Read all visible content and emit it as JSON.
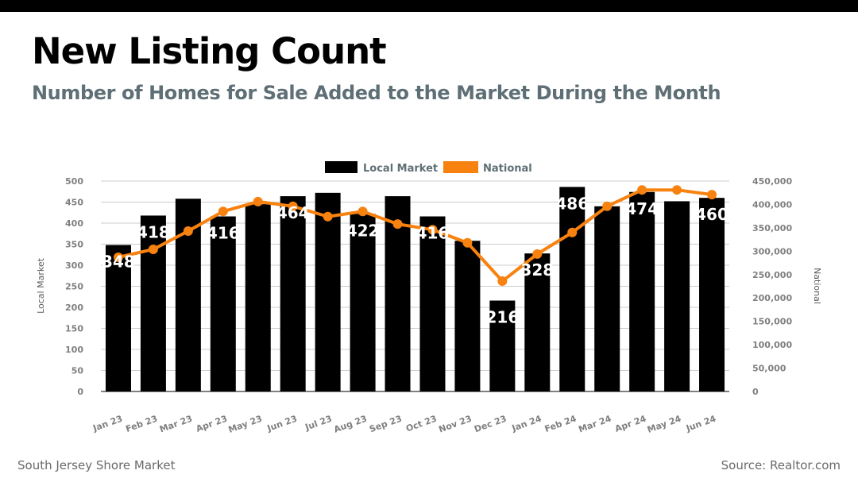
{
  "header": {
    "title": "New Listing Count",
    "subtitle": "Number of Homes for Sale Added to the Market During the Month"
  },
  "footer": {
    "left": "South Jersey Shore Market",
    "right": "Source: Realtor.com"
  },
  "colors": {
    "local": "#000000",
    "national": "#f7820f",
    "grid": "#cccccc",
    "tick": "#7f7f7f",
    "subtitle": "#5f6f76"
  },
  "chart_data": {
    "type": "bar",
    "combo": "bar+line",
    "title": "New Listing Count",
    "subtitle": "Number of Homes for Sale Added to the Market During the Month",
    "categories": [
      "Jan 23",
      "Feb 23",
      "Mar 23",
      "Apr 23",
      "May 23",
      "Jun 23",
      "Jul 23",
      "Aug 23",
      "Sep 23",
      "Oct 23",
      "Nov 23",
      "Dec 23",
      "Jan 24",
      "Feb 24",
      "Mar 24",
      "Apr 24",
      "May 24",
      "Jun 24"
    ],
    "series": [
      {
        "name": "Local Market",
        "type": "bar",
        "axis": "left",
        "values": [
          348,
          418,
          458,
          416,
          445,
          464,
          472,
          422,
          464,
          416,
          358,
          216,
          328,
          486,
          440,
          474,
          452,
          460
        ],
        "data_labels": [
          "348",
          "418",
          "",
          "416",
          "",
          "464",
          "",
          "422",
          "",
          "416",
          "",
          "216",
          "328",
          "486",
          "",
          "474",
          "",
          "460"
        ]
      },
      {
        "name": "National",
        "type": "line",
        "axis": "right",
        "values": [
          287000,
          304000,
          343000,
          385000,
          406000,
          396000,
          374000,
          385000,
          358000,
          346000,
          318000,
          236000,
          294000,
          340000,
          396000,
          431000,
          431000,
          421000
        ]
      }
    ],
    "ylabel": "Local Market",
    "y2label": "National",
    "xlabel": "",
    "ylim": [
      0,
      500
    ],
    "y2lim": [
      0,
      450000
    ],
    "yticks": [
      "0",
      "50",
      "100",
      "150",
      "200",
      "250",
      "300",
      "350",
      "400",
      "450",
      "500"
    ],
    "y2ticks": [
      "0",
      "50,000",
      "100,000",
      "150,000",
      "200,000",
      "250,000",
      "300,000",
      "350,000",
      "400,000",
      "450,000"
    ],
    "grid": true,
    "legend": {
      "position": "top-center",
      "entries": [
        "Local Market",
        "National"
      ]
    }
  }
}
